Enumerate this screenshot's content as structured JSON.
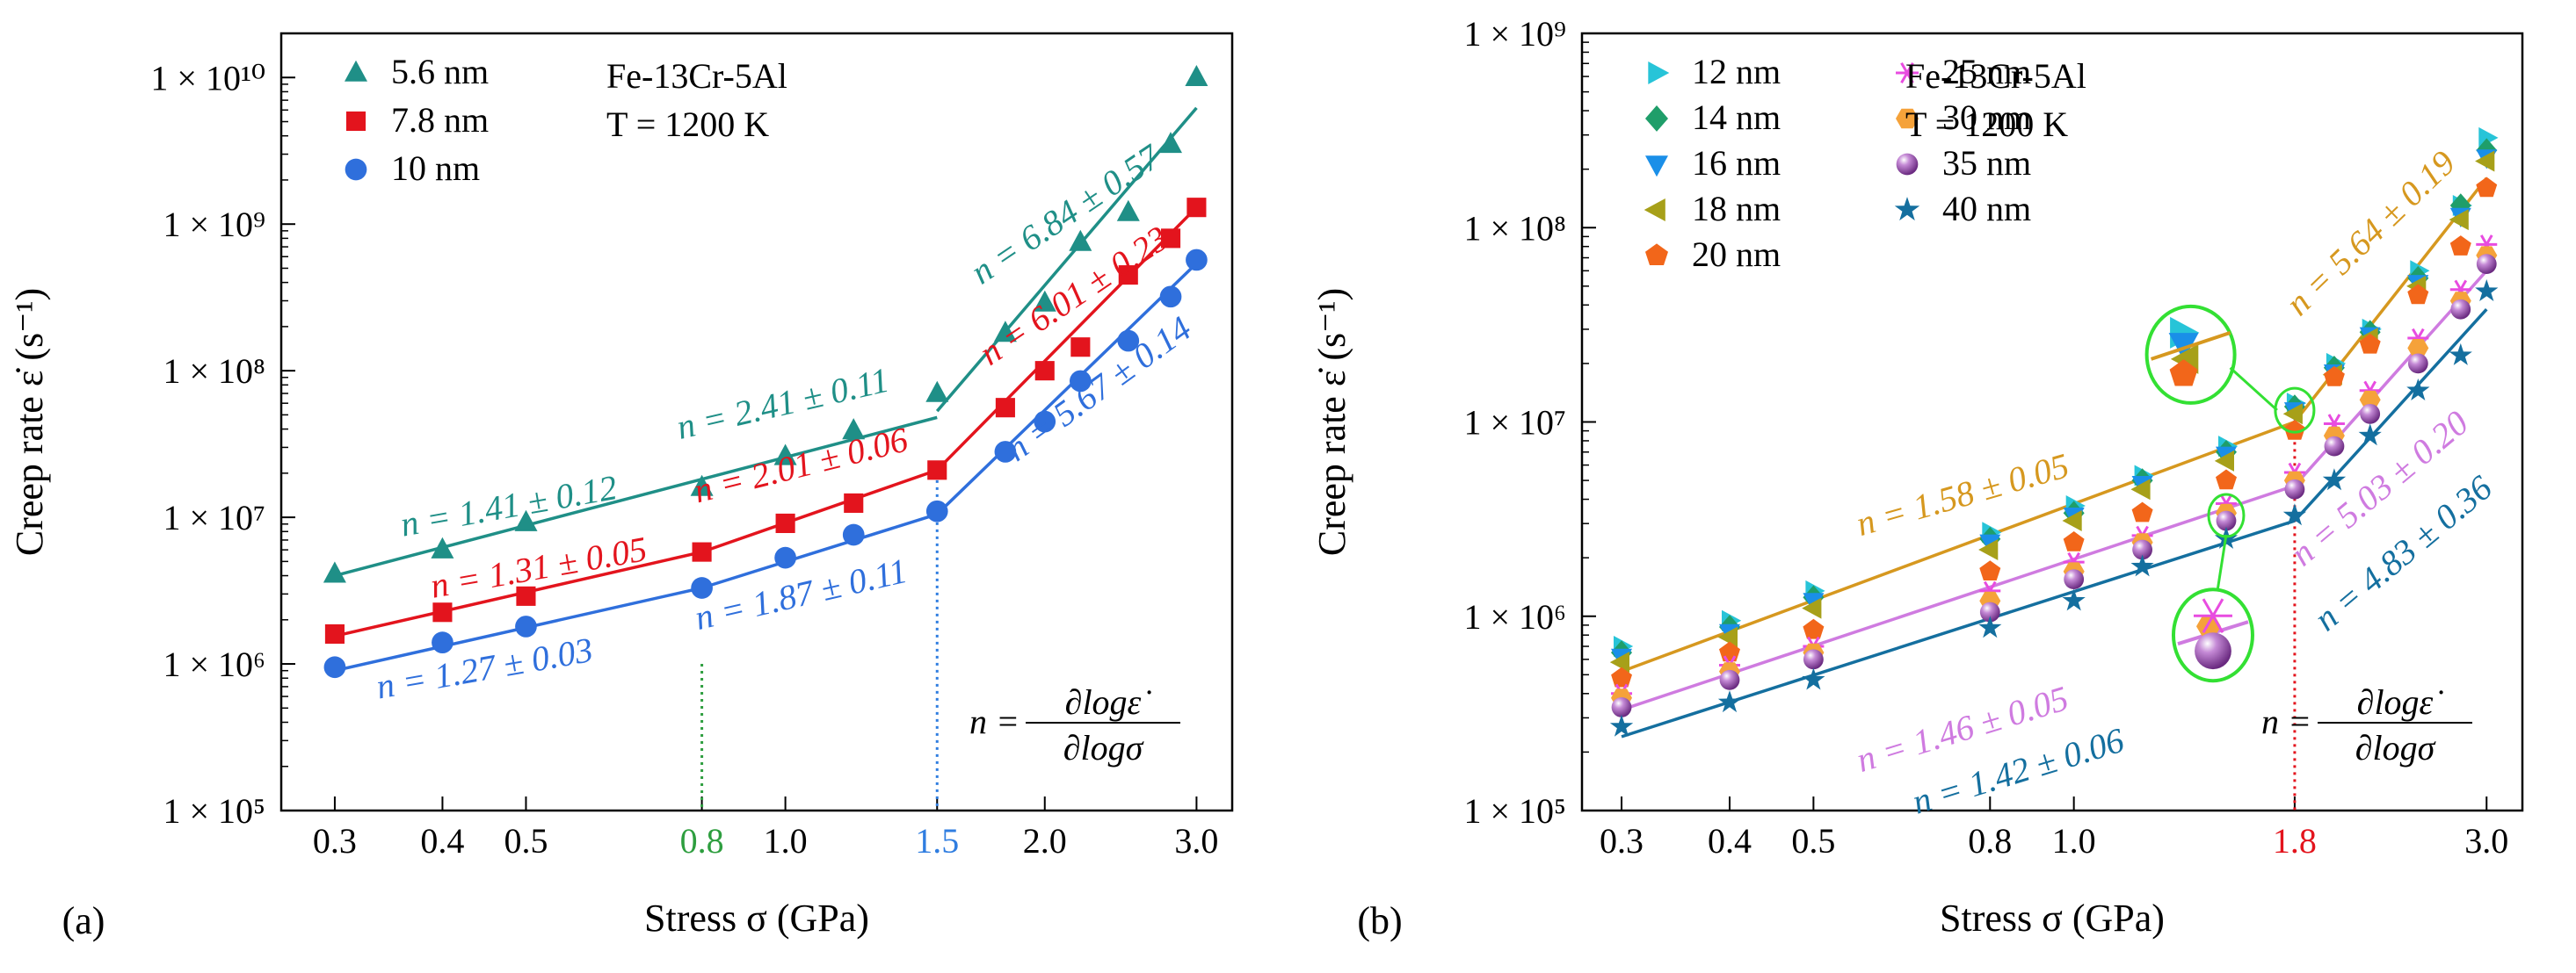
{
  "chart_data": [
    {
      "type": "scatter",
      "panel_label": "(a)",
      "xscale": "log",
      "yscale": "log",
      "xlim": [
        0.26,
        3.3
      ],
      "ylim": [
        100000,
        20000000000
      ],
      "xlabel": "Stress σ (GPa)",
      "ylabel": "Creep rate ε̇ (s⁻¹)",
      "xticks": [
        0.3,
        0.4,
        0.5,
        0.8,
        1.0,
        1.5,
        2.0,
        3.0
      ],
      "xtick_labels": [
        "0.3",
        "0.4",
        "0.5",
        "0.8",
        "1.0",
        "1.5",
        "2.0",
        "3.0"
      ],
      "yticks": [
        100000,
        1000000,
        10000000,
        100000000,
        1000000000,
        10000000000
      ],
      "ytick_labels": [
        "1 × 10⁵",
        "1 × 10⁶",
        "1 × 10⁷",
        "1 × 10⁸",
        "1 × 10⁹",
        "1 × 10¹⁰"
      ],
      "info_lines": [
        "Fe-13Cr-5Al",
        "T = 1200 K"
      ],
      "formula": {
        "lhs": "n =",
        "numerator": "∂logε̇",
        "denominator": "∂logσ"
      },
      "legend_position": "top-left",
      "vlines": [
        {
          "x": 0.8,
          "color": "#2e9e3f",
          "label_color": "#2e9e3f"
        },
        {
          "x": 1.5,
          "color": "#2f7de0",
          "label_color": "#2f7de0"
        }
      ],
      "series": [
        {
          "name": "5.6 nm",
          "color": "#1f8f87",
          "marker": "triangle",
          "x": [
            0.3,
            0.4,
            0.5,
            0.8,
            1.0,
            1.2,
            1.5,
            1.8,
            2.0,
            2.2,
            2.5,
            2.8,
            3.0
          ],
          "y": [
            4100000,
            6000000,
            9200000,
            16000000,
            26000000,
            39000000,
            70000000,
            180000000,
            290000000,
            750000000,
            1200000000,
            3500000000,
            10000000000
          ],
          "fits": [
            {
              "x": [
                0.3,
                1.5
              ],
              "y": [
                4000000,
                48000000
              ]
            },
            {
              "x": [
                1.5,
                3.0
              ],
              "y": [
                53000000,
                6200000000
              ]
            }
          ]
        },
        {
          "name": "7.8 nm",
          "color": "#e3141d",
          "marker": "square",
          "x": [
            0.3,
            0.4,
            0.5,
            0.8,
            1.0,
            1.2,
            1.5,
            1.8,
            2.0,
            2.2,
            2.5,
            2.8,
            3.0
          ],
          "y": [
            1600000,
            2250000,
            2900000,
            5800000,
            9100000,
            12500000,
            21000000,
            56000000,
            100000000,
            145000000,
            450000000,
            800000000,
            1300000000
          ],
          "fits": [
            {
              "x": [
                0.3,
                0.8
              ],
              "y": [
                1550000,
                5800000
              ]
            },
            {
              "x": [
                0.8,
                1.5
              ],
              "y": [
                5800000,
                21000000
              ]
            },
            {
              "x": [
                1.5,
                3.0
              ],
              "y": [
                21000000,
                1300000000
              ]
            }
          ]
        },
        {
          "name": "10 nm",
          "color": "#2f6fdc",
          "marker": "circle",
          "x": [
            0.3,
            0.4,
            0.5,
            0.8,
            1.0,
            1.2,
            1.5,
            1.8,
            2.0,
            2.2,
            2.5,
            2.8,
            3.0
          ],
          "y": [
            950000,
            1400000,
            1800000,
            3300000,
            5300000,
            7600000,
            11000000,
            28000000,
            45000000,
            85000000,
            160000000,
            320000000,
            570000000
          ],
          "fits": [
            {
              "x": [
                0.3,
                0.8
              ],
              "y": [
                900000,
                3300000
              ]
            },
            {
              "x": [
                0.8,
                1.5
              ],
              "y": [
                3300000,
                10500000
              ]
            },
            {
              "x": [
                1.5,
                3.0
              ],
              "y": [
                10500000,
                540000000
              ]
            }
          ]
        }
      ],
      "annotations": [
        {
          "text": "n = 1.41 ± 0.12",
          "color": "#1f8f87",
          "x": 0.48,
          "y": 10000000,
          "angle": -10
        },
        {
          "text": "n = 2.41 ± 0.11",
          "color": "#1f8f87",
          "x": 1.0,
          "y": 50000000,
          "angle": -13
        },
        {
          "text": "n = 6.84 ± 0.57",
          "color": "#1f8f87",
          "x": 2.15,
          "y": 1000000000,
          "angle": -34
        },
        {
          "text": "n = 1.31 ±  0.05",
          "color": "#e3141d",
          "x": 0.52,
          "y": 3800000,
          "angle": -10
        },
        {
          "text": "n = 2.01 ± 0.06",
          "color": "#e3141d",
          "x": 1.05,
          "y": 19000000,
          "angle": -14
        },
        {
          "text": "n = 6.01 ± 0.23",
          "color": "#e3141d",
          "x": 2.2,
          "y": 280000000,
          "angle": -34
        },
        {
          "text": "n = 1.27 ± 0.03",
          "color": "#2f6fdc",
          "x": 0.45,
          "y": 780000,
          "angle": -10
        },
        {
          "text": "n = 1.87 ± 0.11",
          "color": "#2f6fdc",
          "x": 1.05,
          "y": 2500000,
          "angle": -13
        },
        {
          "text": "n = 5.67 ± 0.14",
          "color": "#2f6fdc",
          "x": 2.35,
          "y": 65000000,
          "angle": -36
        }
      ]
    },
    {
      "type": "scatter",
      "panel_label": "(b)",
      "xscale": "log",
      "yscale": "log",
      "xlim": [
        0.27,
        3.3
      ],
      "ylim": [
        100000,
        1000000000
      ],
      "xlabel": "Stress σ (GPa)",
      "ylabel": "Creep rate ε̇ (s⁻¹)",
      "xticks": [
        0.3,
        0.4,
        0.5,
        0.8,
        1.0,
        1.8,
        3.0
      ],
      "xtick_labels": [
        "0.3",
        "0.4",
        "0.5",
        "0.8",
        "1.0",
        "1.8",
        "3.0"
      ],
      "yticks": [
        100000,
        1000000,
        10000000,
        100000000,
        1000000000
      ],
      "ytick_labels": [
        "1 × 10⁵",
        "1 × 10⁶",
        "1 × 10⁷",
        "1 × 10⁸",
        "1 × 10⁹"
      ],
      "info_lines": [
        "Fe-13Cr-5Al",
        "T = 1200 K"
      ],
      "formula": {
        "lhs": "n =",
        "numerator": "∂logε̇",
        "denominator": "∂logσ"
      },
      "legend_position": "top-left",
      "vlines": [
        {
          "x": 1.8,
          "color": "#e3141d",
          "label_color": "#e3141d"
        }
      ],
      "series": [
        {
          "name": "12 nm",
          "color": "#27c4d8",
          "marker": "triangle-right",
          "x": [
            0.3,
            0.4,
            0.5,
            0.8,
            1.0,
            1.2,
            1.5,
            1.8,
            2.0,
            2.2,
            2.5,
            2.8,
            3.0
          ],
          "y": [
            700000,
            950000,
            1350000,
            2700000,
            3700000,
            5300000,
            7500000,
            12500000,
            20000000,
            30000000,
            60000000,
            130000000,
            290000000
          ]
        },
        {
          "name": "14 nm",
          "color": "#1f9e6a",
          "marker": "diamond",
          "x": [
            0.3,
            0.4,
            0.5,
            0.8,
            1.0,
            1.2,
            1.5,
            1.8,
            2.0,
            2.2,
            2.5,
            2.8,
            3.0
          ],
          "y": [
            650000,
            880000,
            1250000,
            2500000,
            3400000,
            5000000,
            7000000,
            12000000,
            19000000,
            29000000,
            55000000,
            130000000,
            250000000
          ]
        },
        {
          "name": "16 nm",
          "color": "#1a8fe8",
          "marker": "triangle-down",
          "x": [
            0.3,
            0.4,
            0.5,
            0.8,
            1.0,
            1.2,
            1.5,
            1.8,
            2.0,
            2.2,
            2.5,
            2.8,
            3.0
          ],
          "y": [
            620000,
            830000,
            1200000,
            2400000,
            3300000,
            4800000,
            6800000,
            11500000,
            18000000,
            28000000,
            52000000,
            115000000,
            230000000
          ]
        },
        {
          "name": "18 nm",
          "color": "#a7a019",
          "marker": "triangle-left",
          "x": [
            0.3,
            0.4,
            0.5,
            0.8,
            1.0,
            1.2,
            1.5,
            1.8,
            2.0,
            2.2,
            2.5,
            2.8,
            3.0
          ],
          "y": [
            580000,
            780000,
            1100000,
            2200000,
            3100000,
            4500000,
            6300000,
            11000000,
            17500000,
            27000000,
            50000000,
            110000000,
            220000000
          ]
        },
        {
          "name": "20 nm",
          "color": "#f2661a",
          "marker": "pentagon",
          "x": [
            0.3,
            0.4,
            0.5,
            0.8,
            1.0,
            1.2,
            1.5,
            1.8,
            2.0,
            2.2,
            2.5,
            2.8,
            3.0
          ],
          "y": [
            480000,
            650000,
            850000,
            1700000,
            2400000,
            3400000,
            5000000,
            9000000,
            17000000,
            25000000,
            45000000,
            80000000,
            160000000
          ]
        },
        {
          "name": "25 nm",
          "color": "#e84ce0",
          "marker": "star6",
          "x": [
            0.3,
            0.4,
            0.5,
            0.8,
            1.0,
            1.2,
            1.5,
            1.8,
            2.0,
            2.2,
            2.5,
            2.8,
            3.0
          ],
          "y": [
            400000,
            560000,
            700000,
            1350000,
            1900000,
            2600000,
            3800000,
            5500000,
            9800000,
            14500000,
            27000000,
            48000000,
            82000000
          ]
        },
        {
          "name": "30 nm",
          "color": "#f5a23a",
          "marker": "hexagon",
          "x": [
            0.3,
            0.4,
            0.5,
            0.8,
            1.0,
            1.2,
            1.5,
            1.8,
            2.0,
            2.2,
            2.5,
            2.8,
            3.0
          ],
          "y": [
            380000,
            520000,
            650000,
            1200000,
            1700000,
            2400000,
            3400000,
            5000000,
            8500000,
            13000000,
            24000000,
            42000000,
            72000000
          ]
        },
        {
          "name": "35 nm",
          "color": "#9b3fb3",
          "marker": "sphere",
          "x": [
            0.3,
            0.4,
            0.5,
            0.8,
            1.0,
            1.2,
            1.5,
            1.8,
            2.0,
            2.2,
            2.5,
            2.8,
            3.0
          ],
          "y": [
            340000,
            470000,
            600000,
            1050000,
            1550000,
            2200000,
            3100000,
            4500000,
            7500000,
            11000000,
            20000000,
            38000000,
            65000000
          ]
        },
        {
          "name": "40 nm",
          "color": "#146f9f",
          "marker": "star5",
          "x": [
            0.3,
            0.4,
            0.5,
            0.8,
            1.0,
            1.2,
            1.5,
            1.8,
            2.0,
            2.2,
            2.5,
            2.8,
            3.0
          ],
          "y": [
            270000,
            360000,
            470000,
            870000,
            1200000,
            1800000,
            2500000,
            3300000,
            5000000,
            8500000,
            14500000,
            22000000,
            47000000
          ]
        }
      ],
      "fit_lines": [
        {
          "color": "#d6981f",
          "segments": [
            {
              "x": [
                0.3,
                1.8
              ],
              "y": [
                520000,
                10000000
              ]
            },
            {
              "x": [
                1.8,
                3.0
              ],
              "y": [
                10000000,
                180000000
              ]
            }
          ]
        },
        {
          "color": "#cf7be0",
          "segments": [
            {
              "x": [
                0.3,
                1.8
              ],
              "y": [
                330000,
                4700000
              ]
            },
            {
              "x": [
                1.8,
                3.0
              ],
              "y": [
                4700000,
                60000000
              ]
            }
          ]
        },
        {
          "color": "#146f9f",
          "segments": [
            {
              "x": [
                0.3,
                1.8
              ],
              "y": [
                240000,
                3100000
              ]
            },
            {
              "x": [
                1.8,
                3.0
              ],
              "y": [
                3100000,
                38000000
              ]
            }
          ]
        }
      ],
      "annotations": [
        {
          "text": "n = 1.58 ± 0.05",
          "color": "#d6981f",
          "x": 0.75,
          "y": 3700000,
          "angle": -16
        },
        {
          "text": "n = 5.64 ± 0.19",
          "color": "#d6981f",
          "x": 2.25,
          "y": 85000000,
          "angle": -44
        },
        {
          "text": "n = 1.46 ± 0.05",
          "color": "#cf7be0",
          "x": 0.75,
          "y": 230000,
          "angle": -17
        },
        {
          "text": "n = 1.42 ± 0.06",
          "color": "#146f9f",
          "x": 0.87,
          "y": 140000,
          "angle": -17
        },
        {
          "text": "n = 5.03 ± 0.20",
          "color": "#cf7be0",
          "x": 2.3,
          "y": 4100000,
          "angle": -40
        },
        {
          "text": "n = 4.83 ± 0.36",
          "color": "#146f9f",
          "x": 2.45,
          "y": 1900000,
          "angle": -40
        }
      ]
    }
  ]
}
